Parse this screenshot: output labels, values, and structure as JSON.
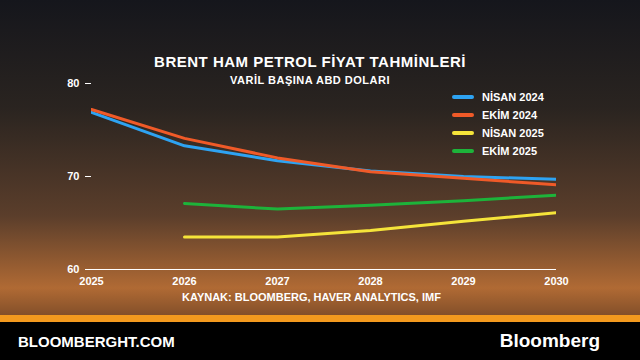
{
  "chart_data": {
    "type": "line",
    "title": "BRENT HAM PETROL FİYAT TAHMİNLERİ",
    "subtitle": "VARİL BAŞINA ABD DOLARI",
    "source": "KAYNAK: BLOOMBERG, HAVER ANALYTICS, IMF",
    "footer": [
      "BLOOMBERGHT.COM",
      "Bloomberg"
    ],
    "x": [
      2025,
      2026,
      2027,
      2028,
      2029,
      2030
    ],
    "series": [
      {
        "name": "NİSAN 2024",
        "color": "#2ea3f2",
        "values": [
          76.9,
          73.3,
          71.7,
          70.6,
          70.0,
          69.7
        ]
      },
      {
        "name": "EKİM 2024",
        "color": "#f05a28",
        "values": [
          77.2,
          74.1,
          72.0,
          70.5,
          69.8,
          69.1
        ]
      },
      {
        "name": "NİSAN 2025",
        "color": "#f5e43a",
        "values": [
          null,
          63.5,
          63.5,
          64.2,
          65.2,
          66.1
        ]
      },
      {
        "name": "EKİM 2025",
        "color": "#1db33a",
        "values": [
          null,
          67.1,
          66.5,
          66.9,
          67.4,
          68.0
        ]
      }
    ],
    "xlim": [
      2025,
      2030
    ],
    "xticks": [
      2025,
      2026,
      2027,
      2028,
      2029,
      2030
    ],
    "ylim": [
      60,
      80
    ],
    "yticks": [
      60,
      70,
      80
    ],
    "grid": false,
    "legend": "top-right"
  }
}
